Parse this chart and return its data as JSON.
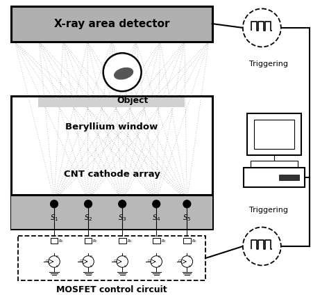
{
  "bg_color": "#ffffff",
  "detector_label": "X-ray area detector",
  "object_label": "Object",
  "beryllium_label": "Beryllium window",
  "cnt_label": "CNT cathode array",
  "mosfet_label": "MOSFET control circuit",
  "triggering_label": "Triggering",
  "n_sources": 5,
  "line_color": "#000000",
  "gray_fill": "#b8b8b8",
  "detector_fill": "#b0b0b0",
  "be_fill": "#d0d0d0",
  "lw_main": 2.2,
  "lw_med": 1.5,
  "lw_thin": 0.8,
  "figsize": [
    4.74,
    4.24
  ],
  "dpi": 100
}
